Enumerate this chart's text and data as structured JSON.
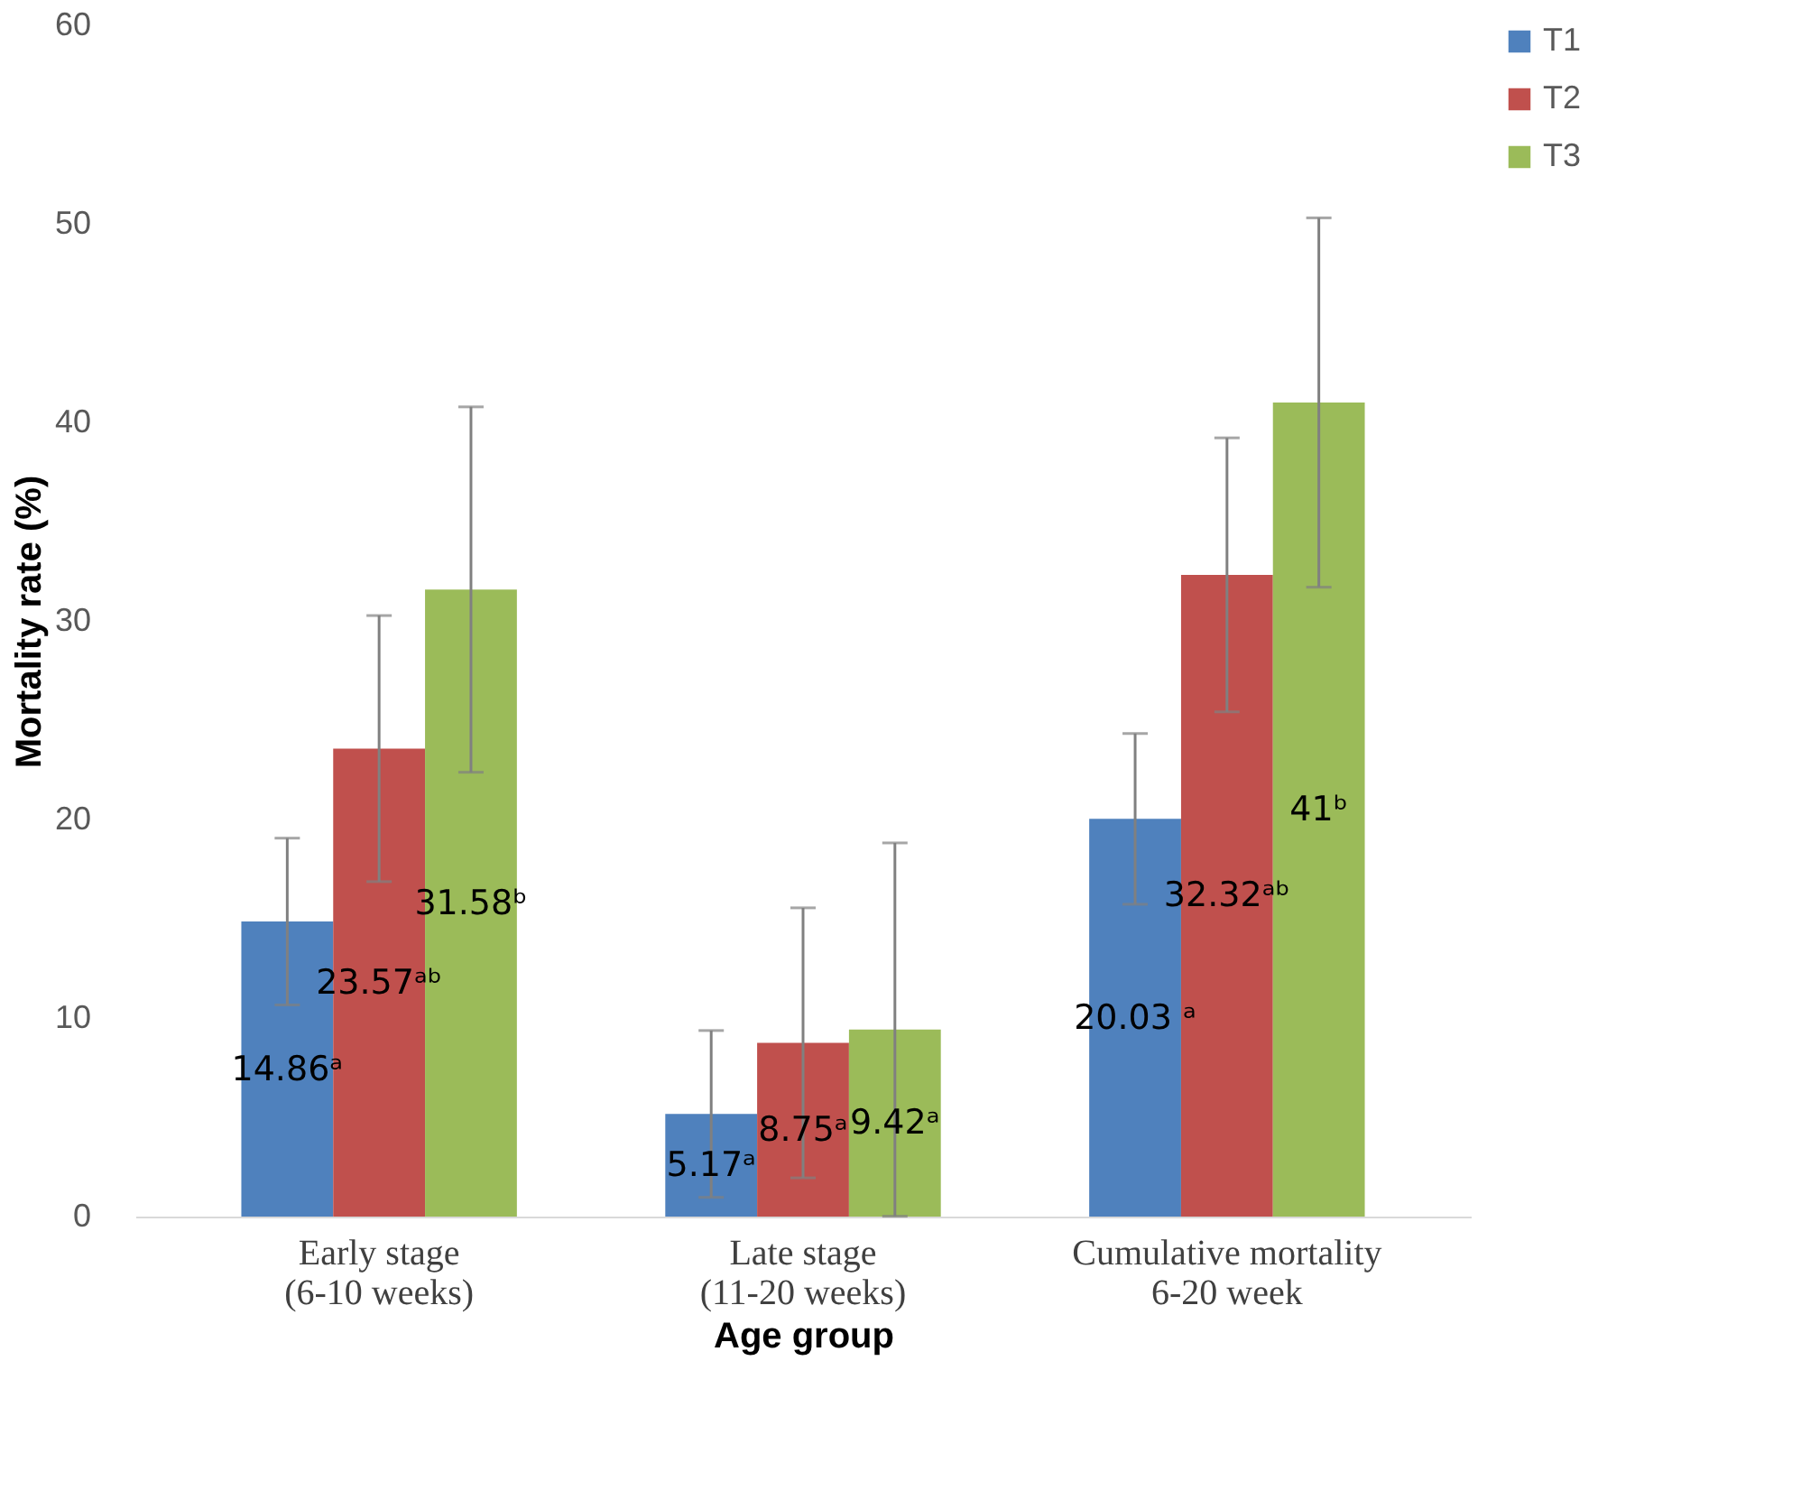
{
  "chart_data": {
    "type": "bar",
    "xlabel": "Age group",
    "ylabel": "Mortality rate (%)",
    "categories": [
      "Early stage\n(6-10 weeks)",
      "Late stage\n(11-20 weeks)",
      "Cumulative mortality\n6-20 week"
    ],
    "series": [
      {
        "name": "T1",
        "color": "#4f81bd",
        "values": [
          14.86,
          5.17,
          20.03
        ],
        "errors": [
          4.2,
          4.2,
          4.3
        ],
        "value_labels": [
          "14.86ᵃ",
          "5.17ᵃ",
          "20.03 ᵃ"
        ]
      },
      {
        "name": "T2",
        "color": "#c0504d",
        "values": [
          23.57,
          8.75,
          32.32
        ],
        "errors": [
          6.7,
          6.8,
          6.9
        ],
        "value_labels": [
          "23.57ᵃᵇ",
          "8.75ᵃ",
          "32.32ᵃᵇ"
        ]
      },
      {
        "name": "T3",
        "color": "#9bbb59",
        "values": [
          31.58,
          9.42,
          41
        ],
        "errors": [
          9.2,
          9.4,
          9.3
        ],
        "value_labels": [
          "31.58ᵇ",
          "9.42ᵃ",
          "41ᵇ"
        ]
      }
    ],
    "ylim": [
      0,
      60
    ],
    "yticks": [
      0,
      10,
      20,
      30,
      40,
      50,
      60
    ],
    "grid": false,
    "legend": "right"
  }
}
